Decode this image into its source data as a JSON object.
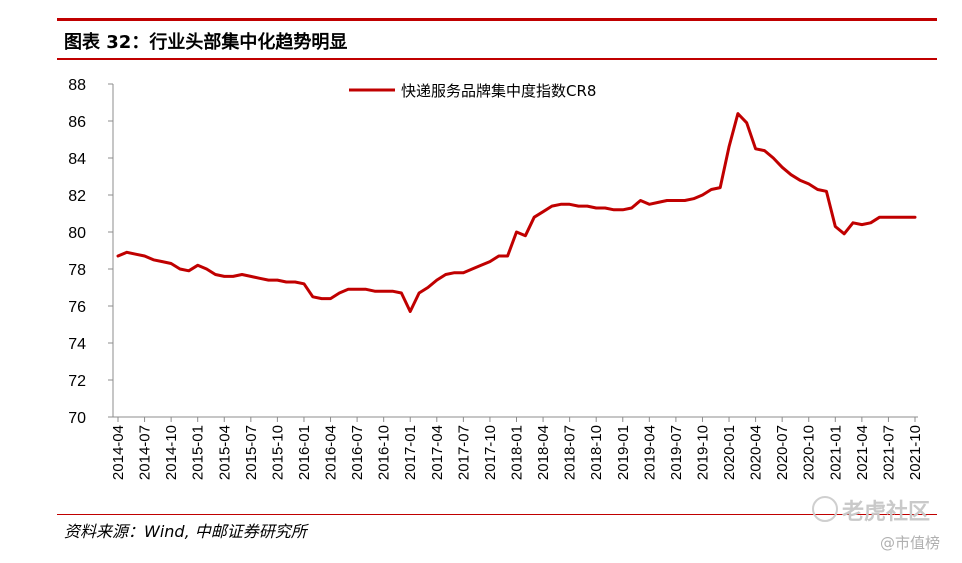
{
  "header": {
    "title": "图表 32：行业头部集中化趋势明显"
  },
  "source": {
    "text": "资料来源：Wind, 中邮证券研究所"
  },
  "watermarks": {
    "main": "老虎社区",
    "sub": "@市值榜"
  },
  "colors": {
    "accent": "#c00000",
    "line": "#c00000"
  },
  "chart_data": {
    "type": "line",
    "title": "",
    "xlabel": "",
    "ylabel": "",
    "ylim": [
      70,
      88
    ],
    "yticks": [
      70,
      72,
      74,
      76,
      78,
      80,
      82,
      84,
      86,
      88
    ],
    "legend_position": "top-center",
    "grid": false,
    "tick_labels": [
      "2014-04",
      "2014-07",
      "2014-10",
      "2015-01",
      "2015-04",
      "2015-07",
      "2015-10",
      "2016-01",
      "2016-04",
      "2016-07",
      "2016-10",
      "2017-01",
      "2017-04",
      "2017-07",
      "2017-10",
      "2018-01",
      "2018-04",
      "2018-07",
      "2018-10",
      "2019-01",
      "2019-04",
      "2019-07",
      "2019-10",
      "2020-01",
      "2020-04",
      "2020-07",
      "2020-10",
      "2021-01",
      "2021-04",
      "2021-07",
      "2021-10"
    ],
    "series": [
      {
        "name": "快递服务品牌集中度指数CR8",
        "x": [
          "2014-04",
          "2014-05",
          "2014-06",
          "2014-07",
          "2014-08",
          "2014-09",
          "2014-10",
          "2014-11",
          "2014-12",
          "2015-01",
          "2015-02",
          "2015-03",
          "2015-04",
          "2015-05",
          "2015-06",
          "2015-07",
          "2015-08",
          "2015-09",
          "2015-10",
          "2015-11",
          "2015-12",
          "2016-01",
          "2016-02",
          "2016-03",
          "2016-04",
          "2016-05",
          "2016-06",
          "2016-07",
          "2016-08",
          "2016-09",
          "2016-10",
          "2016-11",
          "2016-12",
          "2017-01",
          "2017-02",
          "2017-03",
          "2017-04",
          "2017-05",
          "2017-06",
          "2017-07",
          "2017-08",
          "2017-09",
          "2017-10",
          "2017-11",
          "2017-12",
          "2018-01",
          "2018-02",
          "2018-03",
          "2018-04",
          "2018-05",
          "2018-06",
          "2018-07",
          "2018-08",
          "2018-09",
          "2018-10",
          "2018-11",
          "2018-12",
          "2019-01",
          "2019-02",
          "2019-03",
          "2019-04",
          "2019-05",
          "2019-06",
          "2019-07",
          "2019-08",
          "2019-09",
          "2019-10",
          "2019-11",
          "2019-12",
          "2020-01",
          "2020-02",
          "2020-03",
          "2020-04",
          "2020-05",
          "2020-06",
          "2020-07",
          "2020-08",
          "2020-09",
          "2020-10",
          "2020-11",
          "2020-12",
          "2021-01",
          "2021-02",
          "2021-03",
          "2021-04",
          "2021-05",
          "2021-06",
          "2021-07",
          "2021-08",
          "2021-09",
          "2021-10"
        ],
        "values": [
          78.7,
          78.9,
          78.8,
          78.7,
          78.5,
          78.4,
          78.3,
          78.0,
          77.9,
          78.2,
          78.0,
          77.7,
          77.6,
          77.6,
          77.7,
          77.6,
          77.5,
          77.4,
          77.4,
          77.3,
          77.3,
          77.2,
          76.5,
          76.4,
          76.4,
          76.7,
          76.9,
          76.9,
          76.9,
          76.8,
          76.8,
          76.8,
          76.7,
          75.7,
          76.7,
          77.0,
          77.4,
          77.7,
          77.8,
          77.8,
          78.0,
          78.2,
          78.4,
          78.7,
          78.7,
          80.0,
          79.8,
          80.8,
          81.1,
          81.4,
          81.5,
          81.5,
          81.4,
          81.4,
          81.3,
          81.3,
          81.2,
          81.2,
          81.3,
          81.7,
          81.5,
          81.6,
          81.7,
          81.7,
          81.7,
          81.8,
          82.0,
          82.3,
          82.4,
          84.6,
          86.4,
          85.9,
          84.5,
          84.4,
          84.0,
          83.5,
          83.1,
          82.8,
          82.6,
          82.3,
          82.2,
          80.3,
          79.9,
          80.5,
          80.4,
          80.5,
          80.8,
          80.8,
          80.8,
          80.8,
          80.8
        ]
      }
    ]
  }
}
